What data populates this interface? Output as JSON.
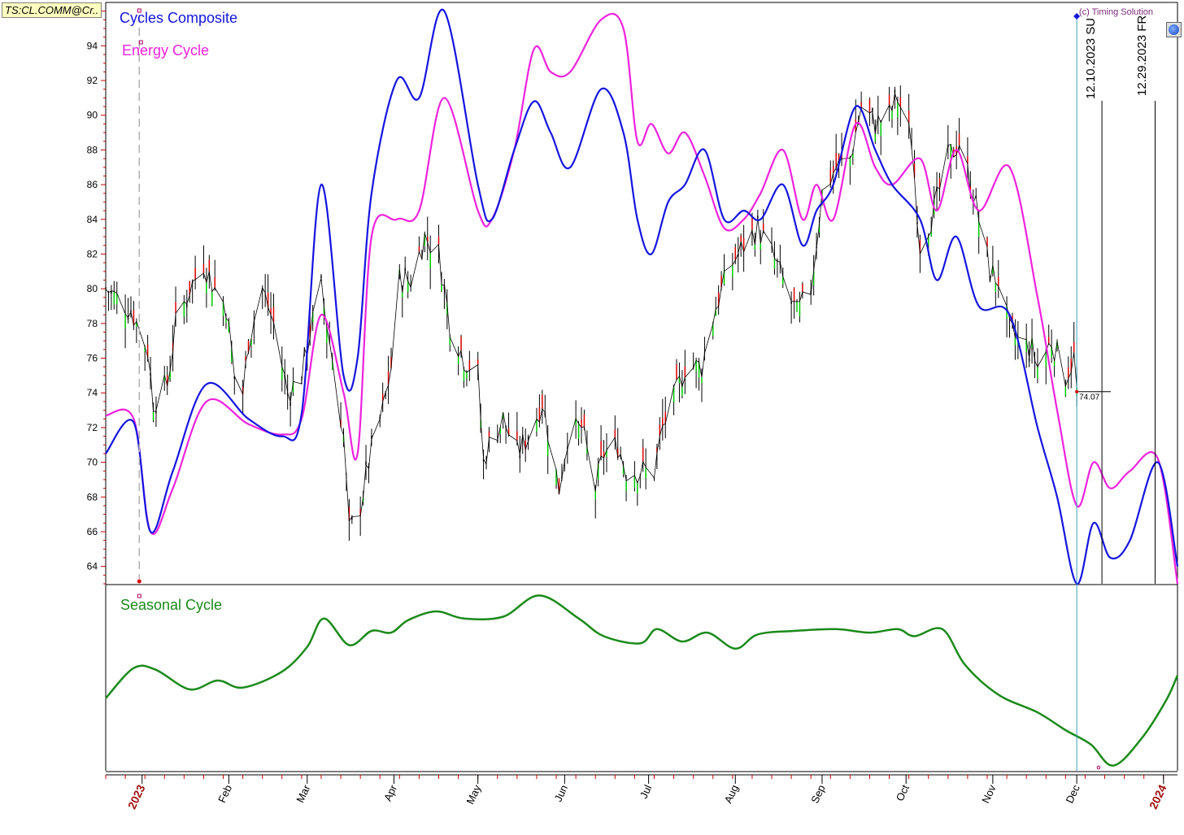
{
  "ticker": "TS:CL.COMM@Cr..",
  "copyright": "(c) Timing Solution",
  "legend": {
    "composite": "Cycles Composite",
    "energy": "Energy Cycle",
    "seasonal": "Seasonal Cycle"
  },
  "colors": {
    "composite": "#1414e0",
    "energy": "#ee22dd",
    "seasonal": "#1a8a1a",
    "bar_up": "#00cc00",
    "bar_down": "#dd0000",
    "bar_neutral": "#000000"
  },
  "icons": {
    "globe": "globe-icon"
  },
  "markers": {
    "last_price": "74.07",
    "vline1": "12.10.2023 SU",
    "vline2": "12.29.2023 FR"
  },
  "chart_data": {
    "type": "line",
    "y_axis": {
      "min": 63,
      "max": 96.5,
      "ticks": [
        64,
        66,
        68,
        70,
        72,
        74,
        76,
        78,
        80,
        82,
        84,
        86,
        88,
        90,
        92,
        94
      ]
    },
    "x_axis": {
      "start": "2022-12-19",
      "end": "2024-01-06",
      "months": [
        {
          "label": "2023",
          "date": "2023-01-01",
          "year": true
        },
        {
          "label": "Feb",
          "date": "2023-02-01"
        },
        {
          "label": "Mar",
          "date": "2023-03-01"
        },
        {
          "label": "Apr",
          "date": "2023-04-01"
        },
        {
          "label": "May",
          "date": "2023-05-01"
        },
        {
          "label": "Jun",
          "date": "2023-06-01"
        },
        {
          "label": "Jul",
          "date": "2023-07-01"
        },
        {
          "label": "Aug",
          "date": "2023-08-01"
        },
        {
          "label": "Sep",
          "date": "2023-09-01"
        },
        {
          "label": "Oct",
          "date": "2023-10-01"
        },
        {
          "label": "Nov",
          "date": "2023-11-01"
        },
        {
          "label": "Dec",
          "date": "2023-12-01"
        },
        {
          "label": "2024",
          "date": "2024-01-01",
          "year": true
        }
      ]
    },
    "price_close": [
      [
        "2022-12-19",
        80.0
      ],
      [
        "2022-12-28",
        78.8
      ],
      [
        "2023-01-03",
        76.5
      ],
      [
        "2023-01-05",
        73.5
      ],
      [
        "2023-01-10",
        74.5
      ],
      [
        "2023-01-13",
        77.9
      ],
      [
        "2023-01-18",
        80.0
      ],
      [
        "2023-01-23",
        81.5
      ],
      [
        "2023-01-27",
        80.0
      ],
      [
        "2023-01-31",
        79.0
      ],
      [
        "2023-02-03",
        75.0
      ],
      [
        "2023-02-06",
        74.0
      ],
      [
        "2023-02-08",
        77.0
      ],
      [
        "2023-02-13",
        80.0
      ],
      [
        "2023-02-17",
        78.0
      ],
      [
        "2023-02-22",
        74.0
      ],
      [
        "2023-02-27",
        75.0
      ],
      [
        "2023-03-02",
        77.5
      ],
      [
        "2023-03-06",
        80.0
      ],
      [
        "2023-03-10",
        76.0
      ],
      [
        "2023-03-14",
        71.5
      ],
      [
        "2023-03-16",
        66.0
      ],
      [
        "2023-03-20",
        67.5
      ],
      [
        "2023-03-23",
        70.0
      ],
      [
        "2023-03-28",
        73.0
      ],
      [
        "2023-03-31",
        75.5
      ],
      [
        "2023-04-03",
        80.5
      ],
      [
        "2023-04-07",
        80.5
      ],
      [
        "2023-04-12",
        83.0
      ],
      [
        "2023-04-17",
        82.0
      ],
      [
        "2023-04-21",
        78.0
      ],
      [
        "2023-04-26",
        76.0
      ],
      [
        "2023-05-01",
        75.0
      ],
      [
        "2023-05-03",
        70.0
      ],
      [
        "2023-05-05",
        71.0
      ],
      [
        "2023-05-10",
        72.5
      ],
      [
        "2023-05-15",
        70.5
      ],
      [
        "2023-05-19",
        71.5
      ],
      [
        "2023-05-24",
        73.5
      ],
      [
        "2023-05-30",
        68.5
      ],
      [
        "2023-06-02",
        71.5
      ],
      [
        "2023-06-07",
        72.0
      ],
      [
        "2023-06-12",
        68.5
      ],
      [
        "2023-06-15",
        70.5
      ],
      [
        "2023-06-20",
        71.0
      ],
      [
        "2023-06-23",
        69.5
      ],
      [
        "2023-06-28",
        69.5
      ],
      [
        "2023-07-03",
        69.5
      ],
      [
        "2023-07-06",
        72.0
      ],
      [
        "2023-07-11",
        74.0
      ],
      [
        "2023-07-14",
        75.5
      ],
      [
        "2023-07-20",
        75.5
      ],
      [
        "2023-07-25",
        79.0
      ],
      [
        "2023-07-31",
        81.5
      ],
      [
        "2023-08-04",
        82.5
      ],
      [
        "2023-08-09",
        83.5
      ],
      [
        "2023-08-14",
        82.0
      ],
      [
        "2023-08-18",
        80.5
      ],
      [
        "2023-08-23",
        78.5
      ],
      [
        "2023-08-28",
        80.0
      ],
      [
        "2023-09-01",
        85.5
      ],
      [
        "2023-09-06",
        87.0
      ],
      [
        "2023-09-11",
        87.5
      ],
      [
        "2023-09-15",
        90.5
      ],
      [
        "2023-09-20",
        89.5
      ],
      [
        "2023-09-25",
        90.0
      ],
      [
        "2023-09-28",
        91.0
      ],
      [
        "2023-10-03",
        88.5
      ],
      [
        "2023-10-06",
        82.5
      ],
      [
        "2023-10-11",
        84.5
      ],
      [
        "2023-10-16",
        87.5
      ],
      [
        "2023-10-20",
        88.5
      ],
      [
        "2023-10-25",
        85.5
      ],
      [
        "2023-10-31",
        81.0
      ],
      [
        "2023-11-03",
        80.5
      ],
      [
        "2023-11-07",
        77.5
      ],
      [
        "2023-11-10",
        77.0
      ],
      [
        "2023-11-15",
        76.5
      ],
      [
        "2023-11-17",
        75.5
      ],
      [
        "2023-11-22",
        77.0
      ],
      [
        "2023-11-27",
        75.0
      ],
      [
        "2023-11-30",
        76.0
      ],
      [
        "2023-12-01",
        74.07
      ]
    ],
    "series": [
      {
        "name": "Cycles Composite",
        "values": [
          [
            "2022-12-19",
            70.5
          ],
          [
            "2022-12-29",
            72.3
          ],
          [
            "2023-01-04",
            66.0
          ],
          [
            "2023-01-12",
            69.5
          ],
          [
            "2023-01-24",
            74.5
          ],
          [
            "2023-02-08",
            72.5
          ],
          [
            "2023-02-20",
            71.5
          ],
          [
            "2023-02-27",
            72.8
          ],
          [
            "2023-03-06",
            86.0
          ],
          [
            "2023-03-14",
            75.0
          ],
          [
            "2023-03-19",
            76.0
          ],
          [
            "2023-03-24",
            85.5
          ],
          [
            "2023-04-02",
            92.0
          ],
          [
            "2023-04-10",
            91.0
          ],
          [
            "2023-04-19",
            96.0
          ],
          [
            "2023-05-01",
            86.0
          ],
          [
            "2023-05-06",
            84.0
          ],
          [
            "2023-05-14",
            88.0
          ],
          [
            "2023-05-21",
            90.8
          ],
          [
            "2023-05-27",
            89.0
          ],
          [
            "2023-06-03",
            87.0
          ],
          [
            "2023-06-14",
            91.5
          ],
          [
            "2023-06-22",
            89.0
          ],
          [
            "2023-06-27",
            84.0
          ],
          [
            "2023-07-02",
            82.0
          ],
          [
            "2023-07-08",
            85.0
          ],
          [
            "2023-07-14",
            86.0
          ],
          [
            "2023-07-21",
            88.0
          ],
          [
            "2023-07-28",
            84.0
          ],
          [
            "2023-08-04",
            84.5
          ],
          [
            "2023-08-10",
            84.0
          ],
          [
            "2023-08-18",
            86.0
          ],
          [
            "2023-08-25",
            82.5
          ],
          [
            "2023-08-30",
            84.5
          ],
          [
            "2023-09-05",
            86.0
          ],
          [
            "2023-09-13",
            90.5
          ],
          [
            "2023-09-20",
            88.0
          ],
          [
            "2023-09-26",
            86.0
          ],
          [
            "2023-10-06",
            84.0
          ],
          [
            "2023-10-12",
            80.5
          ],
          [
            "2023-10-19",
            83.0
          ],
          [
            "2023-10-27",
            79.0
          ],
          [
            "2023-11-07",
            78.5
          ],
          [
            "2023-11-17",
            72.0
          ],
          [
            "2023-11-24",
            68.0
          ],
          [
            "2023-12-01",
            63.0
          ],
          [
            "2023-12-07",
            66.5
          ],
          [
            "2023-12-13",
            64.5
          ],
          [
            "2023-12-20",
            65.5
          ],
          [
            "2023-12-30",
            70.0
          ],
          [
            "2024-01-06",
            64.0
          ]
        ]
      },
      {
        "name": "Energy Cycle",
        "values": [
          [
            "2022-12-19",
            72.7
          ],
          [
            "2022-12-29",
            72.5
          ],
          [
            "2023-01-04",
            66.0
          ],
          [
            "2023-01-12",
            68.5
          ],
          [
            "2023-01-24",
            73.5
          ],
          [
            "2023-02-08",
            72.2
          ],
          [
            "2023-02-20",
            71.6
          ],
          [
            "2023-02-27",
            72.5
          ],
          [
            "2023-03-06",
            78.5
          ],
          [
            "2023-03-14",
            74.0
          ],
          [
            "2023-03-19",
            70.5
          ],
          [
            "2023-03-24",
            83.0
          ],
          [
            "2023-04-02",
            84.0
          ],
          [
            "2023-04-10",
            84.5
          ],
          [
            "2023-04-19",
            91.0
          ],
          [
            "2023-05-01",
            84.5
          ],
          [
            "2023-05-06",
            84.0
          ],
          [
            "2023-05-14",
            88.0
          ],
          [
            "2023-05-21",
            93.8
          ],
          [
            "2023-05-27",
            92.5
          ],
          [
            "2023-06-03",
            92.5
          ],
          [
            "2023-06-14",
            95.5
          ],
          [
            "2023-06-22",
            95.0
          ],
          [
            "2023-06-27",
            88.5
          ],
          [
            "2023-07-02",
            89.5
          ],
          [
            "2023-07-08",
            87.8
          ],
          [
            "2023-07-14",
            89.0
          ],
          [
            "2023-07-21",
            86.5
          ],
          [
            "2023-07-28",
            83.5
          ],
          [
            "2023-08-04",
            84.0
          ],
          [
            "2023-08-10",
            85.5
          ],
          [
            "2023-08-18",
            88.0
          ],
          [
            "2023-08-25",
            84.0
          ],
          [
            "2023-08-30",
            86.0
          ],
          [
            "2023-09-05",
            84.0
          ],
          [
            "2023-09-13",
            89.5
          ],
          [
            "2023-09-20",
            87.0
          ],
          [
            "2023-09-26",
            86.0
          ],
          [
            "2023-10-06",
            87.5
          ],
          [
            "2023-10-12",
            84.5
          ],
          [
            "2023-10-19",
            88.0
          ],
          [
            "2023-10-27",
            84.5
          ],
          [
            "2023-11-07",
            87.0
          ],
          [
            "2023-11-17",
            79.5
          ],
          [
            "2023-11-24",
            73.0
          ],
          [
            "2023-12-01",
            67.5
          ],
          [
            "2023-12-07",
            70.0
          ],
          [
            "2023-12-13",
            68.5
          ],
          [
            "2023-12-20",
            69.5
          ],
          [
            "2023-12-30",
            70.2
          ],
          [
            "2024-01-06",
            63.0
          ]
        ]
      },
      {
        "name": "Seasonal Cycle",
        "values": [
          [
            "2022-12-19",
            0.4
          ],
          [
            "2022-12-29",
            0.57
          ],
          [
            "2023-01-06",
            0.56
          ],
          [
            "2023-01-18",
            0.45
          ],
          [
            "2023-01-28",
            0.5
          ],
          [
            "2023-02-06",
            0.46
          ],
          [
            "2023-02-20",
            0.55
          ],
          [
            "2023-03-01",
            0.69
          ],
          [
            "2023-03-07",
            0.85
          ],
          [
            "2023-03-16",
            0.7
          ],
          [
            "2023-03-24",
            0.78
          ],
          [
            "2023-03-31",
            0.77
          ],
          [
            "2023-04-06",
            0.84
          ],
          [
            "2023-04-16",
            0.89
          ],
          [
            "2023-04-26",
            0.85
          ],
          [
            "2023-05-10",
            0.86
          ],
          [
            "2023-05-23",
            0.98
          ],
          [
            "2023-06-06",
            0.85
          ],
          [
            "2023-06-15",
            0.75
          ],
          [
            "2023-06-28",
            0.71
          ],
          [
            "2023-07-04",
            0.79
          ],
          [
            "2023-07-13",
            0.72
          ],
          [
            "2023-07-22",
            0.77
          ],
          [
            "2023-08-01",
            0.68
          ],
          [
            "2023-08-09",
            0.76
          ],
          [
            "2023-08-22",
            0.78
          ],
          [
            "2023-09-06",
            0.79
          ],
          [
            "2023-09-18",
            0.77
          ],
          [
            "2023-09-28",
            0.79
          ],
          [
            "2023-10-04",
            0.75
          ],
          [
            "2023-10-14",
            0.79
          ],
          [
            "2023-10-22",
            0.59
          ],
          [
            "2023-11-03",
            0.42
          ],
          [
            "2023-11-17",
            0.32
          ],
          [
            "2023-11-27",
            0.22
          ],
          [
            "2023-12-06",
            0.14
          ],
          [
            "2023-12-14",
            0.02
          ],
          [
            "2023-12-24",
            0.17
          ],
          [
            "2024-01-02",
            0.39
          ],
          [
            "2024-01-06",
            0.53
          ]
        ]
      }
    ],
    "annotations": {
      "last_price_date": "2023-12-01",
      "vline1_date": "2023-12-10",
      "vline2_date": "2023-12-29",
      "start_line_date": "2022-12-31"
    },
    "grid": false,
    "legend": "top-left"
  }
}
